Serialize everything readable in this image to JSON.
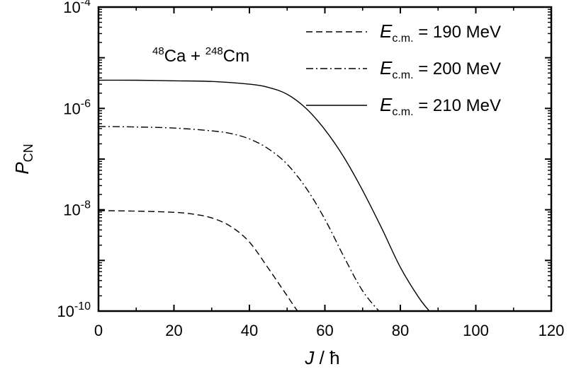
{
  "chart_data": {
    "type": "line",
    "annotation": {
      "mass1": "48",
      "elem1": "Ca",
      "plus": " + ",
      "mass2": "248",
      "elem2": "Cm"
    },
    "xlabel": {
      "symbol": "J",
      "sep": " / ",
      "unit": "ħ"
    },
    "ylabel": {
      "symbol": "P",
      "sub": "CN"
    },
    "xlim": [
      0,
      120
    ],
    "ylim": [
      1e-10,
      0.0001
    ],
    "yscale": "log",
    "x_ticks": [
      {
        "value": 0,
        "label": "0"
      },
      {
        "value": 20,
        "label": "20"
      },
      {
        "value": 40,
        "label": "40"
      },
      {
        "value": 60,
        "label": "60"
      },
      {
        "value": 80,
        "label": "80"
      },
      {
        "value": 100,
        "label": "100"
      },
      {
        "value": 120,
        "label": "120"
      }
    ],
    "y_ticks": [
      {
        "value": 1e-10,
        "base": "10",
        "exp": "-10"
      },
      {
        "value": 1e-08,
        "base": "10",
        "exp": "-8"
      },
      {
        "value": 1e-06,
        "base": "10",
        "exp": "-6"
      },
      {
        "value": 0.0001,
        "base": "10",
        "exp": "-4"
      }
    ],
    "legend_position": "top-right",
    "series": [
      {
        "name": "E c.m. = 190 MeV",
        "label": {
          "E": "E",
          "sub": "c.m.",
          "rest": " = 190 MeV"
        },
        "dash": "dashed",
        "x": [
          0,
          10,
          20,
          25,
          30,
          35,
          40,
          45,
          48,
          50,
          52,
          53
        ],
        "y": [
          9.6e-09,
          9.4e-09,
          8.9e-09,
          8.2e-09,
          6.9e-09,
          4.7e-09,
          2.3e-09,
          7e-10,
          3.3e-10,
          2e-10,
          1.2e-10,
          9.4e-11
        ]
      },
      {
        "name": "E c.m. = 200 MeV",
        "label": {
          "E": "E",
          "sub": "c.m.",
          "rest": " = 200 MeV"
        },
        "dash": "dash-dot",
        "x": [
          0,
          10,
          20,
          30,
          35,
          40,
          45,
          50,
          55,
          60,
          65,
          70,
          75
        ],
        "y": [
          4.4e-07,
          4.3e-07,
          4.1e-07,
          3.6e-07,
          3.2e-07,
          2.5e-07,
          1.6e-07,
          7.9e-08,
          2.7e-08,
          6.5e-09,
          1.2e-09,
          2.5e-10,
          8.8e-11
        ]
      },
      {
        "name": "E c.m. = 210 MeV",
        "label": {
          "E": "E",
          "sub": "c.m.",
          "rest": " = 210 MeV"
        },
        "dash": "solid",
        "x": [
          0,
          10,
          20,
          30,
          40,
          45,
          50,
          55,
          60,
          65,
          70,
          75,
          80,
          85,
          88
        ],
        "y": [
          3.6e-06,
          3.6e-06,
          3.5e-06,
          3.4e-06,
          3e-06,
          2.6e-06,
          1.9e-06,
          1e-06,
          3.8e-07,
          1.1e-07,
          2.4e-08,
          4.4e-09,
          7.3e-10,
          1.8e-10,
          9.4e-11
        ]
      }
    ]
  }
}
